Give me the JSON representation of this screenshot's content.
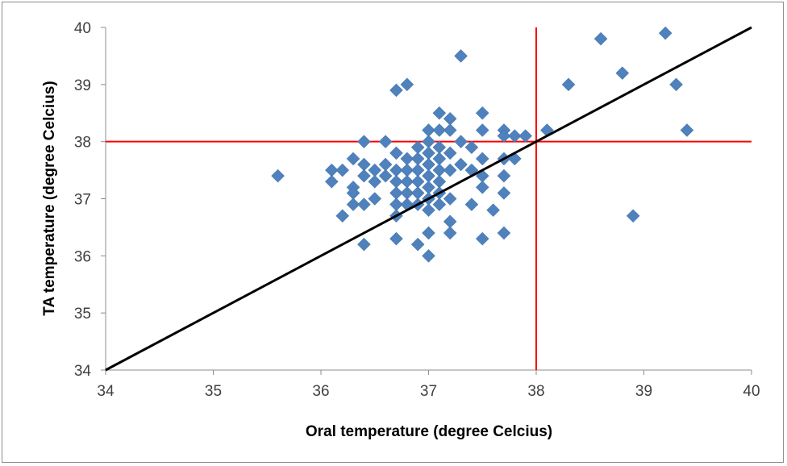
{
  "chart_data": {
    "type": "scatter",
    "xlabel": "Oral temperature (degree Celcius)",
    "ylabel": "TA temperature (degree Celcius)",
    "xlim": [
      34,
      40
    ],
    "ylim": [
      34,
      40
    ],
    "x_ticks": [
      "34",
      "35",
      "36",
      "37",
      "38",
      "39",
      "40"
    ],
    "y_ticks": [
      "34",
      "35",
      "36",
      "37",
      "38",
      "39",
      "40"
    ],
    "grid": false,
    "legend": "none",
    "point_color": "#4F81BD",
    "identity_line": {
      "from": [
        34,
        34
      ],
      "to": [
        40,
        40
      ],
      "color": "#000000"
    },
    "threshold_lines": [
      {
        "orientation": "vertical",
        "value": 38,
        "color": "#FF0000"
      },
      {
        "orientation": "horizontal",
        "value": 38,
        "color": "#FF0000"
      }
    ],
    "points": [
      [
        35.6,
        37.4
      ],
      [
        36.1,
        37.5
      ],
      [
        36.1,
        37.3
      ],
      [
        36.2,
        37.5
      ],
      [
        36.2,
        36.7
      ],
      [
        36.3,
        37.7
      ],
      [
        36.3,
        37.2
      ],
      [
        36.3,
        37.1
      ],
      [
        36.3,
        36.9
      ],
      [
        36.4,
        38.0
      ],
      [
        36.4,
        37.6
      ],
      [
        36.4,
        37.4
      ],
      [
        36.4,
        36.9
      ],
      [
        36.4,
        36.2
      ],
      [
        36.5,
        37.5
      ],
      [
        36.5,
        37.3
      ],
      [
        36.5,
        37.0
      ],
      [
        36.6,
        38.0
      ],
      [
        36.6,
        37.6
      ],
      [
        36.6,
        37.4
      ],
      [
        36.7,
        38.9
      ],
      [
        36.7,
        37.8
      ],
      [
        36.7,
        37.5
      ],
      [
        36.7,
        37.3
      ],
      [
        36.7,
        37.1
      ],
      [
        36.7,
        36.9
      ],
      [
        36.7,
        36.7
      ],
      [
        36.7,
        36.3
      ],
      [
        36.8,
        39.0
      ],
      [
        36.8,
        37.7
      ],
      [
        36.8,
        37.5
      ],
      [
        36.8,
        37.3
      ],
      [
        36.8,
        37.1
      ],
      [
        36.8,
        36.9
      ],
      [
        36.9,
        37.9
      ],
      [
        36.9,
        37.7
      ],
      [
        36.9,
        37.5
      ],
      [
        36.9,
        37.3
      ],
      [
        36.9,
        37.1
      ],
      [
        36.9,
        36.9
      ],
      [
        36.9,
        36.2
      ],
      [
        37.0,
        38.2
      ],
      [
        37.0,
        38.0
      ],
      [
        37.0,
        37.8
      ],
      [
        37.0,
        37.6
      ],
      [
        37.0,
        37.4
      ],
      [
        37.0,
        37.2
      ],
      [
        37.0,
        37.0
      ],
      [
        37.0,
        36.8
      ],
      [
        37.0,
        36.4
      ],
      [
        37.0,
        36.0
      ],
      [
        37.1,
        38.5
      ],
      [
        37.1,
        38.2
      ],
      [
        37.1,
        37.9
      ],
      [
        37.1,
        37.7
      ],
      [
        37.1,
        37.5
      ],
      [
        37.1,
        37.3
      ],
      [
        37.1,
        37.1
      ],
      [
        37.1,
        36.9
      ],
      [
        37.2,
        38.4
      ],
      [
        37.2,
        38.2
      ],
      [
        37.2,
        37.8
      ],
      [
        37.2,
        37.5
      ],
      [
        37.2,
        37.0
      ],
      [
        37.2,
        36.6
      ],
      [
        37.2,
        36.4
      ],
      [
        37.3,
        39.5
      ],
      [
        37.3,
        38.0
      ],
      [
        37.3,
        37.6
      ],
      [
        37.4,
        37.9
      ],
      [
        37.4,
        37.5
      ],
      [
        37.4,
        36.9
      ],
      [
        37.5,
        38.5
      ],
      [
        37.5,
        38.2
      ],
      [
        37.5,
        37.7
      ],
      [
        37.5,
        37.4
      ],
      [
        37.5,
        37.2
      ],
      [
        37.5,
        36.3
      ],
      [
        37.6,
        36.8
      ],
      [
        37.7,
        38.2
      ],
      [
        37.7,
        38.1
      ],
      [
        37.7,
        37.7
      ],
      [
        37.7,
        37.4
      ],
      [
        37.7,
        37.1
      ],
      [
        37.7,
        36.4
      ],
      [
        37.8,
        38.1
      ],
      [
        37.8,
        37.7
      ],
      [
        37.9,
        38.1
      ],
      [
        38.1,
        38.2
      ],
      [
        38.3,
        39.0
      ],
      [
        38.6,
        39.8
      ],
      [
        38.8,
        39.2
      ],
      [
        38.9,
        36.7
      ],
      [
        39.2,
        39.9
      ],
      [
        39.3,
        39.0
      ],
      [
        39.4,
        38.2
      ]
    ]
  }
}
